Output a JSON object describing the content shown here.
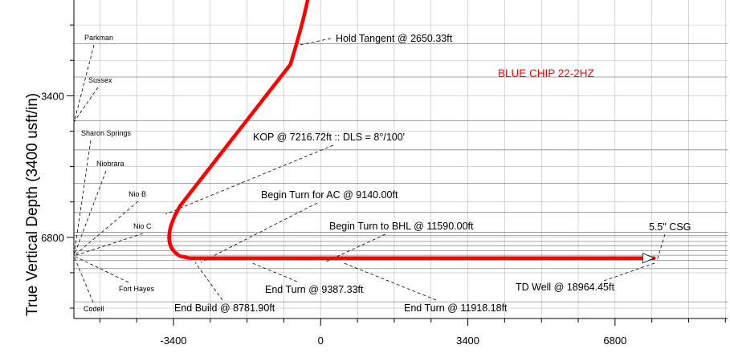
{
  "chart_data": {
    "type": "line",
    "ylabel": "True Vertical Depth (3400 usft/in)",
    "title": "BLUE CHIP 22-2HZ",
    "title_color": "#ff0000",
    "well_color": "#ff0000",
    "grid": true,
    "x_ticks": [
      -3400,
      0,
      3400,
      6800
    ],
    "x_tick_labels": [
      "-3400",
      "0",
      "3400",
      "6800"
    ],
    "y_ticks": [
      3400,
      6800
    ],
    "y_tick_labels": [
      "3400",
      "6800"
    ],
    "xlim": [
      -5700,
      9400
    ],
    "ylim": [
      8750,
      1100
    ],
    "well_path": [
      {
        "x": -300,
        "y": 1100
      },
      {
        "x": -700,
        "y": 2650
      },
      {
        "x": -3450,
        "y": 6450
      },
      {
        "x": -3000,
        "y": 7300
      },
      {
        "x": 7700,
        "y": 7300
      }
    ],
    "formations": [
      {
        "name": "Parkman",
        "tvd": 2150
      },
      {
        "name": "Sussex",
        "tvd": 2950
      },
      {
        "name": "Sharon Springs",
        "tvd": 4000
      },
      {
        "name": "Niobrara",
        "tvd": 4700
      },
      {
        "name": "Nio B",
        "tvd": 5500
      },
      {
        "name": "Nio C",
        "tvd": 6200
      },
      {
        "name": "Fort Hayes",
        "tvd": 7550
      },
      {
        "name": "Codell",
        "tvd": 8350
      }
    ],
    "annotations": [
      {
        "text": "Hold Tangent @ 2650.33ft",
        "x": -700,
        "y": 2650
      },
      {
        "text": "KOP @ 7216.72ft :: DLS = 8°/100'",
        "x": -3300,
        "y": 6650
      },
      {
        "text": "Begin Turn for AC @ 9140.00ft",
        "x": -2950,
        "y": 7300
      },
      {
        "text": "Begin Turn to BHL @ 11590.00ft",
        "x": 0,
        "y": 7300
      },
      {
        "text": "End Build @ 8781.90ft",
        "x": -3000,
        "y": 7300
      },
      {
        "text": "End Turn @ 9387.33ft",
        "x": -1000,
        "y": 7300
      },
      {
        "text": "End Turn @ 11918.18ft",
        "x": 2300,
        "y": 7300
      },
      {
        "text": "TD Well @ 18964.45ft",
        "x": 7700,
        "y": 7300
      },
      {
        "text": "5.5\" CSG",
        "x": 7700,
        "y": 7300
      }
    ]
  }
}
